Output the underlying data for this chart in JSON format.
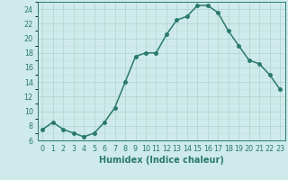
{
  "title": "",
  "xlabel": "Humidex (Indice chaleur)",
  "ylabel": "",
  "x": [
    0,
    1,
    2,
    3,
    4,
    5,
    6,
    7,
    8,
    9,
    10,
    11,
    12,
    13,
    14,
    15,
    16,
    17,
    18,
    19,
    20,
    21,
    22,
    23
  ],
  "y": [
    7.5,
    8.5,
    7.5,
    7.0,
    6.5,
    7.0,
    8.5,
    10.5,
    14.0,
    17.5,
    18.0,
    18.0,
    20.5,
    22.5,
    23.0,
    24.5,
    24.5,
    23.5,
    21.0,
    19.0,
    17.0,
    16.5,
    15.0,
    13.0
  ],
  "line_color": "#2a7a6a",
  "marker_color": "#2a7a6a",
  "bg_color": "#ceeaea",
  "grid_major_color": "#add4ce",
  "grid_minor_color": "#c0e0da",
  "axis_color": "#2a7a6a",
  "ylim": [
    6,
    25
  ],
  "xlim": [
    -0.5,
    23.5
  ],
  "yticks": [
    6,
    8,
    10,
    12,
    14,
    16,
    18,
    20,
    22,
    24
  ],
  "xticks": [
    0,
    1,
    2,
    3,
    4,
    5,
    6,
    7,
    8,
    9,
    10,
    11,
    12,
    13,
    14,
    15,
    16,
    17,
    18,
    19,
    20,
    21,
    22,
    23
  ],
  "xtick_labels": [
    "0",
    "1",
    "2",
    "3",
    "4",
    "5",
    "6",
    "7",
    "8",
    "9",
    "10",
    "11",
    "12",
    "13",
    "14",
    "15",
    "16",
    "17",
    "18",
    "19",
    "20",
    "21",
    "22",
    "23"
  ],
  "fontsize_label": 7,
  "fontsize_tick": 5.8,
  "linewidth": 1.1,
  "markersize": 2.5
}
